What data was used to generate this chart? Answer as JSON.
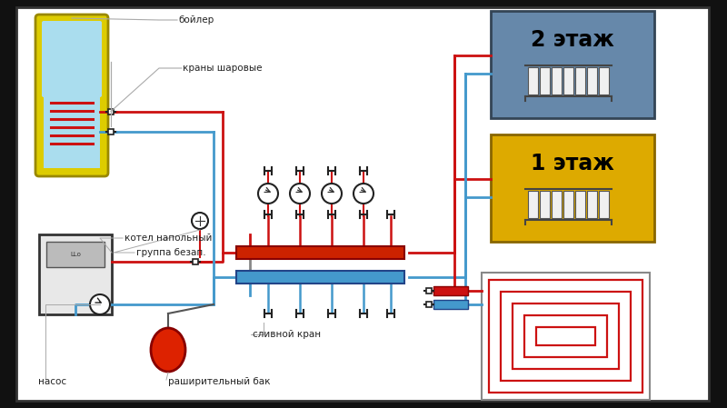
{
  "bg_color": "#ffffff",
  "outer_bg": "#111111",
  "red_pipe": "#cc1111",
  "blue_pipe": "#4499cc",
  "boiler_border": "#ddcc00",
  "boiler_fill": "#aaddee",
  "boiler_coil": "#cc1111",
  "floor2_bg": "#6688aa",
  "floor1_bg": "#ddaa00",
  "manifold_red": "#cc2200",
  "manifold_blue": "#4499cc",
  "label_color": "#222222",
  "label_fs": 7.5,
  "boiler_label": "бойлер",
  "ball_valves_label": "краны шаровые",
  "floor2_label": "2 этаж",
  "floor1_label": "1 этаж",
  "boiler_floor_label": "котел напольный",
  "safety_group_label": "группа безап.",
  "drain_label": "сливной кран",
  "expansion_label": "раширительный бак",
  "pump_label": "насос"
}
